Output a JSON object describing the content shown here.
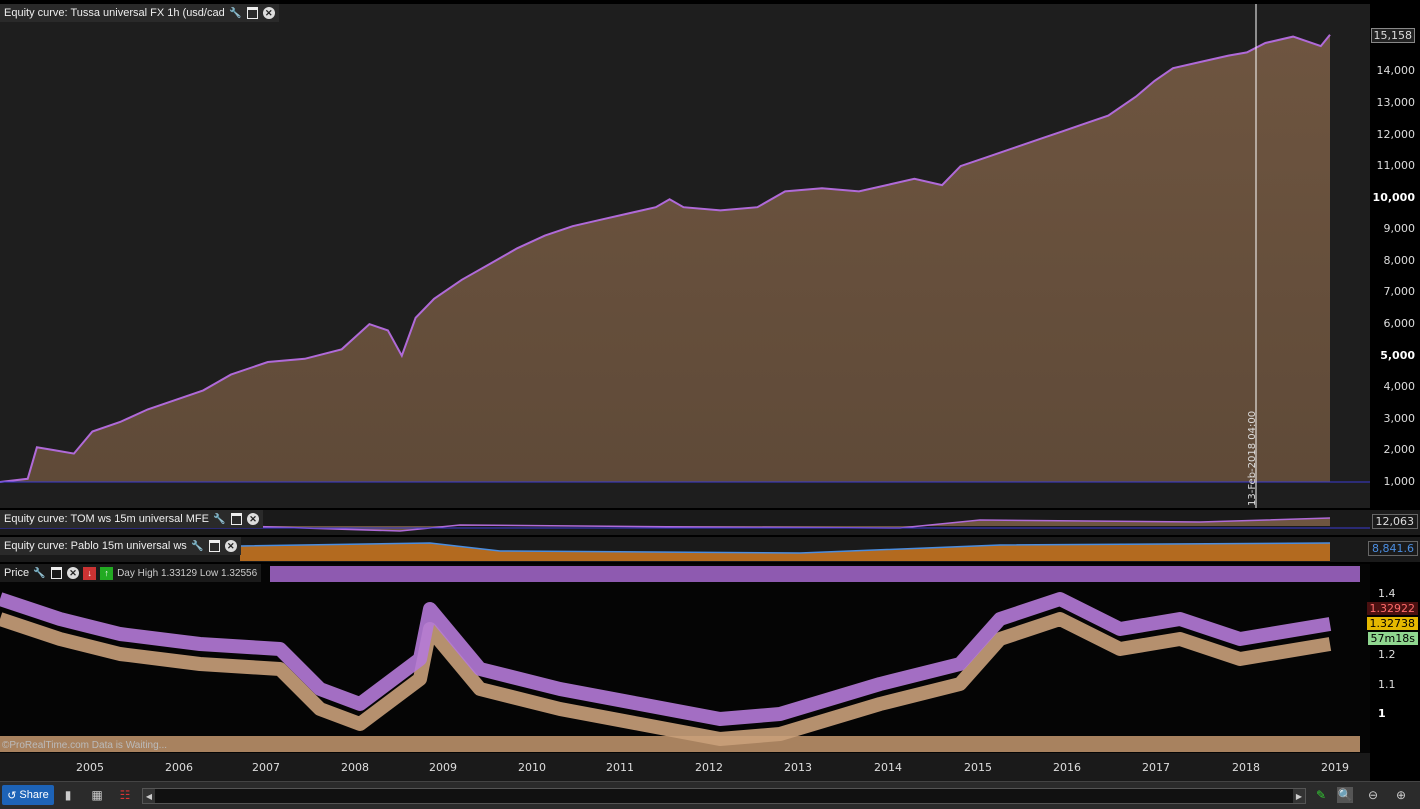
{
  "panels": {
    "main": {
      "title": "Equity curve: Tussa universal FX 1h (usd/cad",
      "last_value": "15,158",
      "cursor_label": "13-Feb-2018 04:00"
    },
    "tom": {
      "title": "Equity curve: TOM ws 15m universal MFE",
      "last_value": "12,063"
    },
    "pablo": {
      "title": "Equity curve: Pablo 15m universal ws",
      "last_value": "8,841.6"
    },
    "price": {
      "title": "Price",
      "info_text": "Day High 1.33129 Low 1.32556",
      "value_red": "1.32922",
      "value_yellow": "1.32738",
      "value_timer": "57m18s",
      "watermark": "©ProRealTime.com Data is Waiting..."
    }
  },
  "main_axis": [
    "15,158",
    "14,000",
    "13,000",
    "12,000",
    "11,000",
    "10,000",
    "9,000",
    "8,000",
    "7,000",
    "6,000",
    "5,000",
    "4,000",
    "3,000",
    "2,000",
    "1,000"
  ],
  "price_axis": [
    "1.4",
    "1.3",
    "1.2",
    "1.1",
    "1"
  ],
  "x_axis": [
    "2005",
    "2006",
    "2007",
    "2008",
    "2009",
    "2010",
    "2011",
    "2012",
    "2013",
    "2014",
    "2015",
    "2016",
    "2017",
    "2018",
    "2019"
  ],
  "chart_data": {
    "type": "area",
    "title": "Equity curve: Tussa universal FX 1h (usd/cad",
    "x": [
      "2004.6",
      "2004.9",
      "2005.0",
      "2005.2",
      "2005.4",
      "2005.6",
      "2005.9",
      "2006.2",
      "2006.5",
      "2006.8",
      "2007.1",
      "2007.5",
      "2007.9",
      "2008.3",
      "2008.6",
      "2008.8",
      "2008.95",
      "2009.1",
      "2009.3",
      "2009.6",
      "2009.9",
      "2010.2",
      "2010.5",
      "2010.8",
      "2011.1",
      "2011.4",
      "2011.7",
      "2011.85",
      "2012.0",
      "2012.4",
      "2012.8",
      "2013.1",
      "2013.5",
      "2013.9",
      "2014.2",
      "2014.5",
      "2014.8",
      "2015.0",
      "2015.3",
      "2015.6",
      "2015.9",
      "2016.1",
      "2016.3",
      "2016.6",
      "2016.9",
      "2017.1",
      "2017.3",
      "2017.6",
      "2017.9",
      "2018.1",
      "2018.3",
      "2018.6",
      "2018.9",
      "2019.0"
    ],
    "values": [
      1000,
      1100,
      2100,
      2000,
      1900,
      2600,
      2900,
      3300,
      3600,
      3900,
      4400,
      4800,
      4900,
      5200,
      6000,
      5800,
      5000,
      6200,
      6800,
      7400,
      7900,
      8400,
      8800,
      9100,
      9300,
      9500,
      9700,
      9950,
      9700,
      9600,
      9700,
      10200,
      10300,
      10200,
      10400,
      10600,
      10400,
      11000,
      11300,
      11600,
      11900,
      12100,
      12300,
      12600,
      13200,
      13700,
      14100,
      14300,
      14500,
      14600,
      14900,
      15100,
      14800,
      15158
    ],
    "ylim": [
      1000,
      15500
    ],
    "xlabel": "",
    "ylabel": ""
  },
  "bottombar": {
    "share_label": "Share"
  }
}
